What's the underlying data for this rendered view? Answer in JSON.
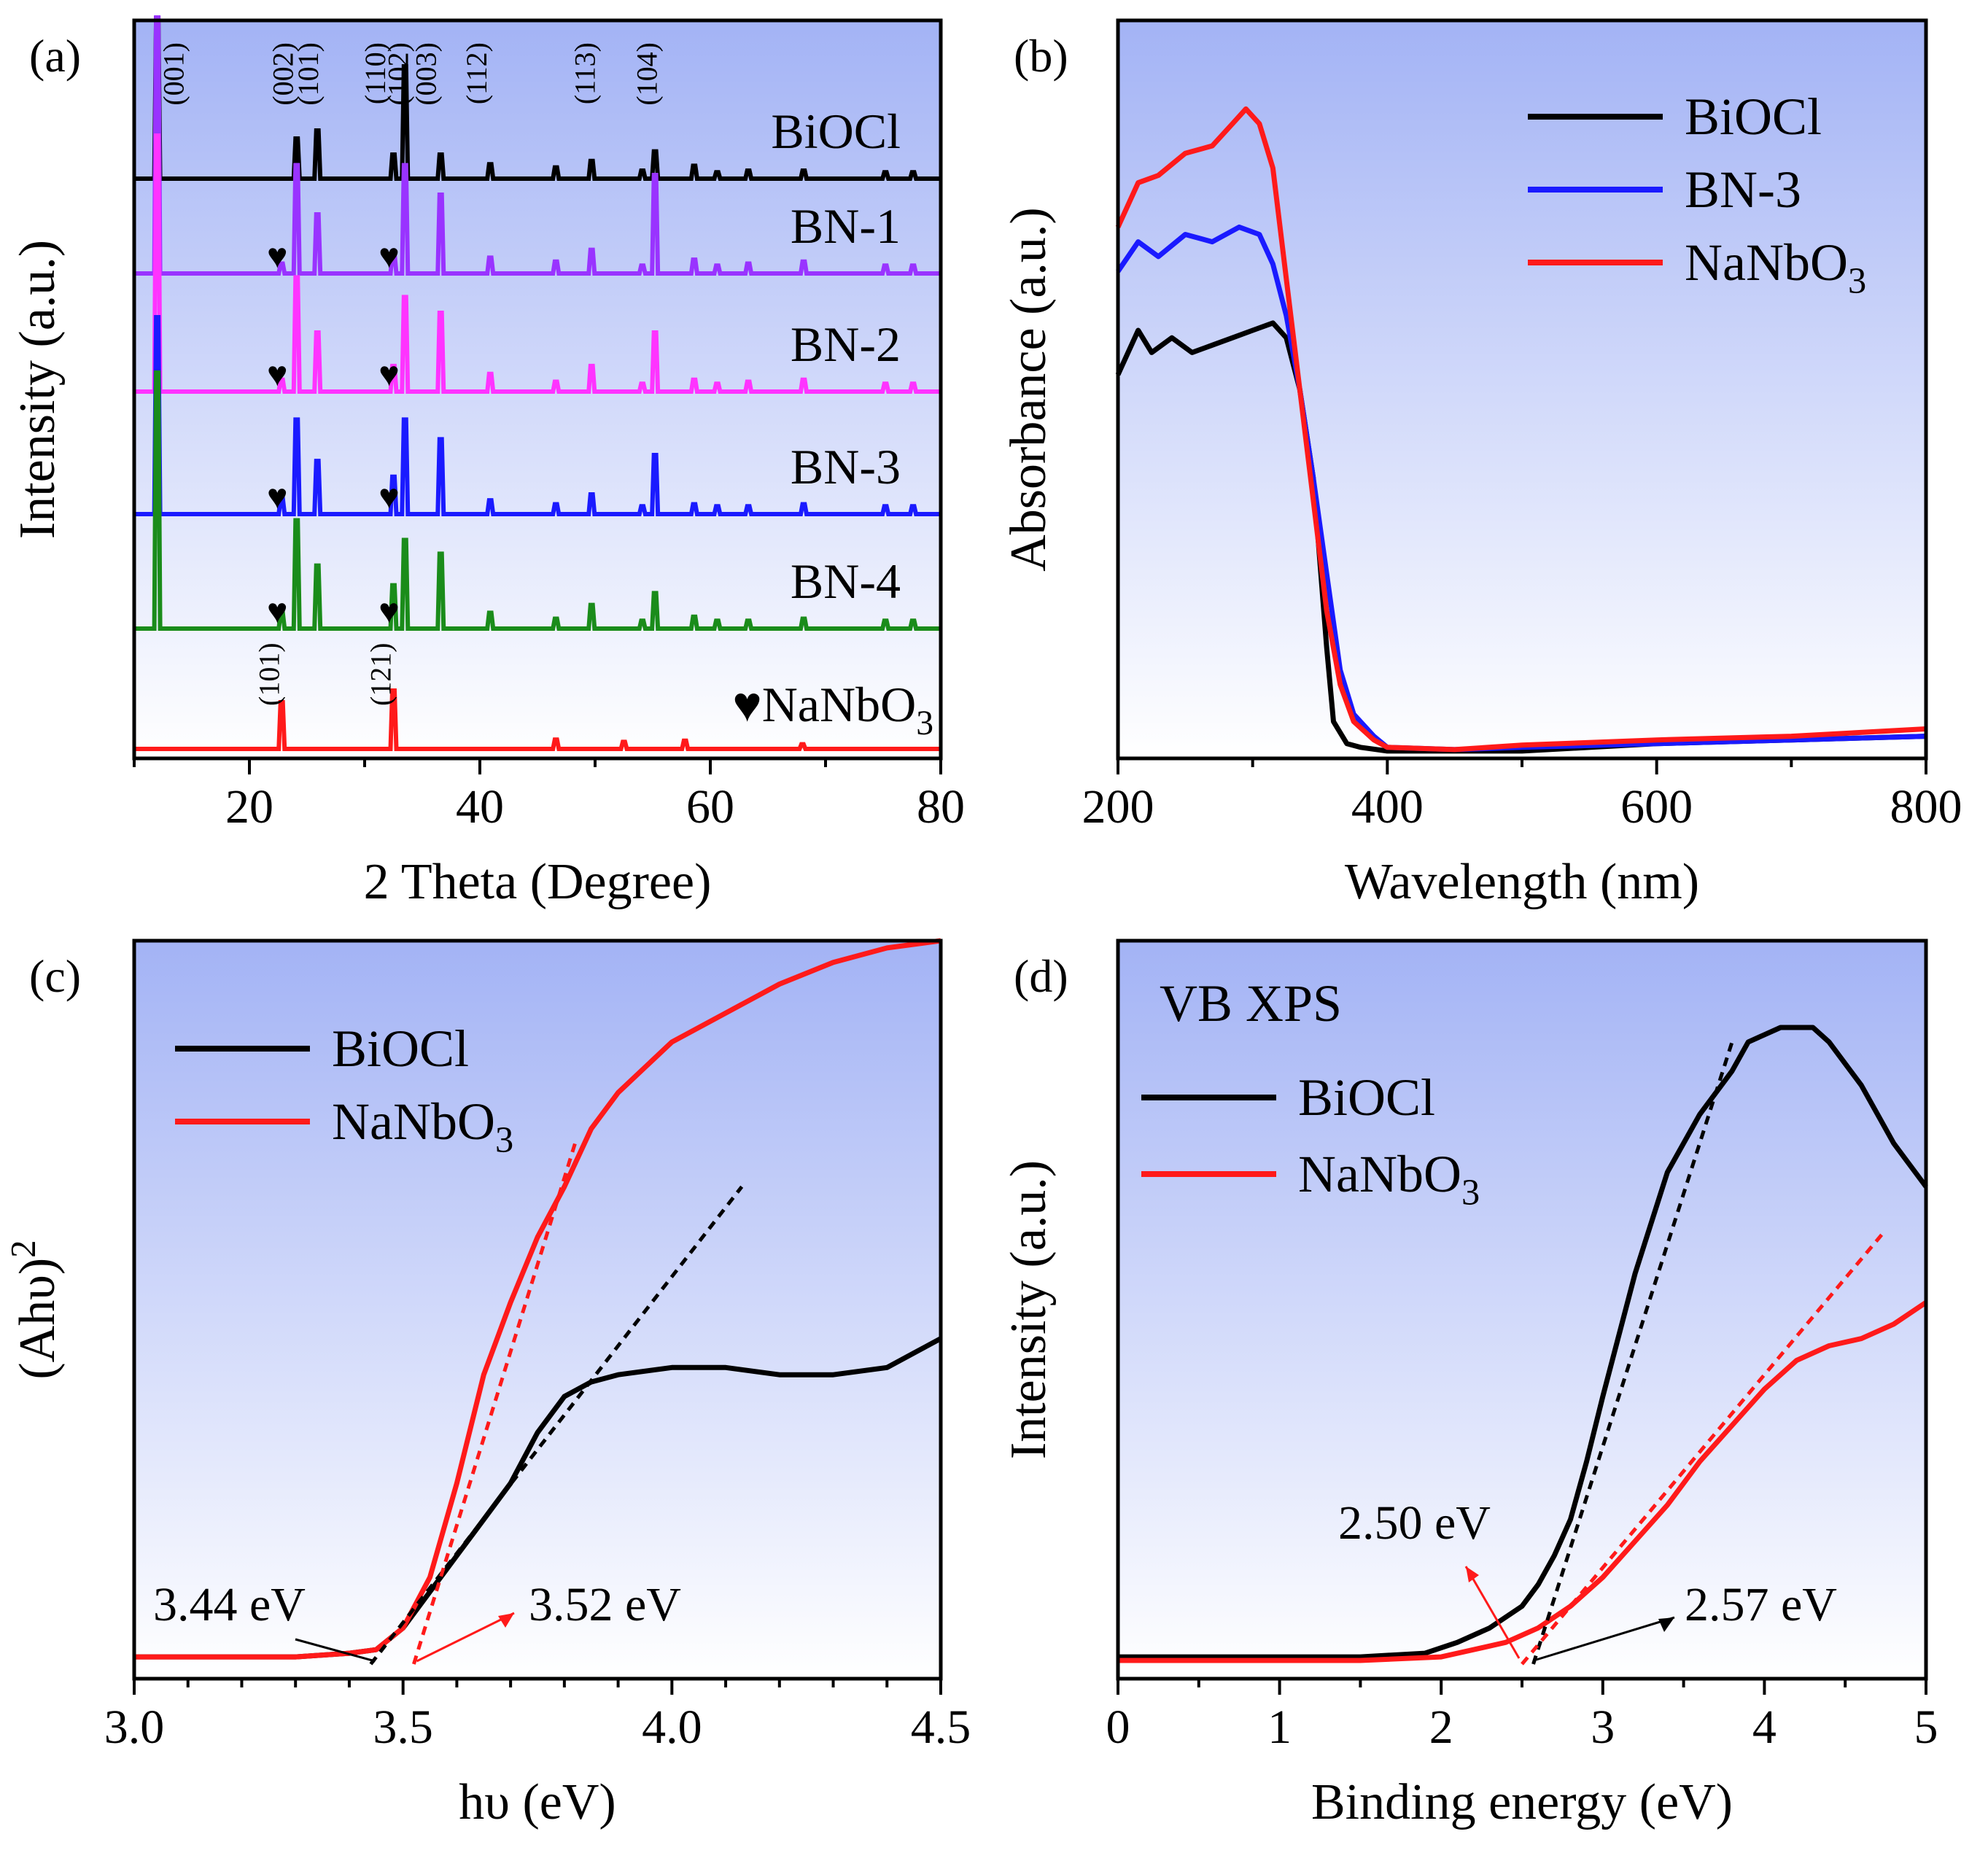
{
  "colors": {
    "black": "#000000",
    "blue": "#1a1aff",
    "red": "#ff1a1a",
    "purple": "#9933ff",
    "magenta": "#ff33ff",
    "green": "#1a8c1a",
    "bg_top": "#a3b3f5",
    "bg_bottom": "#ffffff"
  },
  "chart_data": [
    {
      "id": "a",
      "panel_label": "(a)",
      "type": "line",
      "xlabel": "2 Theta (Degree)",
      "ylabel": "Intensity (a.u.)",
      "xlim": [
        10,
        80
      ],
      "xticks": [
        20,
        40,
        60,
        80
      ],
      "series": [
        {
          "name": "BiOCl",
          "color": "#000000",
          "peaks": [
            [
              12.0,
              1.0
            ],
            [
              24.1,
              0.25
            ],
            [
              25.9,
              0.3
            ],
            [
              32.5,
              0.15
            ],
            [
              33.5,
              0.7
            ],
            [
              36.6,
              0.15
            ],
            [
              40.9,
              0.09
            ],
            [
              46.6,
              0.07
            ],
            [
              49.7,
              0.11
            ],
            [
              54.1,
              0.05
            ],
            [
              55.2,
              0.17
            ],
            [
              58.6,
              0.08
            ],
            [
              60.6,
              0.04
            ],
            [
              63.3,
              0.05
            ],
            [
              68.1,
              0.05
            ],
            [
              75.2,
              0.04
            ],
            [
              77.6,
              0.04
            ]
          ]
        },
        {
          "name": "BN-1",
          "color": "#9933ff",
          "peaks": [
            [
              12.0,
              1.3
            ],
            [
              22.8,
              0.05
            ],
            [
              24.1,
              0.55
            ],
            [
              25.9,
              0.3
            ],
            [
              32.5,
              0.1
            ],
            [
              33.5,
              0.55
            ],
            [
              36.6,
              0.4
            ],
            [
              40.9,
              0.08
            ],
            [
              46.6,
              0.06
            ],
            [
              49.7,
              0.12
            ],
            [
              54.1,
              0.04
            ],
            [
              55.2,
              0.5
            ],
            [
              58.6,
              0.07
            ],
            [
              60.6,
              0.04
            ],
            [
              63.3,
              0.05
            ],
            [
              68.1,
              0.06
            ],
            [
              75.2,
              0.04
            ],
            [
              77.6,
              0.04
            ]
          ]
        },
        {
          "name": "BN-2",
          "color": "#ff33ff",
          "peaks": [
            [
              12.0,
              1.3
            ],
            [
              22.8,
              0.06
            ],
            [
              24.1,
              0.58
            ],
            [
              25.9,
              0.3
            ],
            [
              32.5,
              0.13
            ],
            [
              33.5,
              0.48
            ],
            [
              36.6,
              0.4
            ],
            [
              40.9,
              0.09
            ],
            [
              46.6,
              0.05
            ],
            [
              49.7,
              0.13
            ],
            [
              54.1,
              0.04
            ],
            [
              55.2,
              0.3
            ],
            [
              58.6,
              0.06
            ],
            [
              60.6,
              0.04
            ],
            [
              63.3,
              0.05
            ],
            [
              68.1,
              0.06
            ],
            [
              75.2,
              0.04
            ],
            [
              77.6,
              0.04
            ]
          ]
        },
        {
          "name": "BN-3",
          "color": "#1a1aff",
          "peaks": [
            [
              12.0,
              1.0
            ],
            [
              22.8,
              0.08
            ],
            [
              24.1,
              0.48
            ],
            [
              25.9,
              0.27
            ],
            [
              32.5,
              0.19
            ],
            [
              33.5,
              0.48
            ],
            [
              36.6,
              0.38
            ],
            [
              40.9,
              0.07
            ],
            [
              46.6,
              0.05
            ],
            [
              49.7,
              0.1
            ],
            [
              54.1,
              0.04
            ],
            [
              55.2,
              0.3
            ],
            [
              58.6,
              0.05
            ],
            [
              60.6,
              0.04
            ],
            [
              63.3,
              0.04
            ],
            [
              68.1,
              0.05
            ],
            [
              75.2,
              0.04
            ],
            [
              77.6,
              0.04
            ]
          ]
        },
        {
          "name": "BN-4",
          "color": "#1a8c1a",
          "peaks": [
            [
              12.0,
              1.3
            ],
            [
              22.8,
              0.08
            ],
            [
              24.1,
              0.55
            ],
            [
              25.9,
              0.32
            ],
            [
              32.5,
              0.22
            ],
            [
              33.5,
              0.45
            ],
            [
              36.6,
              0.38
            ],
            [
              40.9,
              0.08
            ],
            [
              46.6,
              0.05
            ],
            [
              49.7,
              0.12
            ],
            [
              54.1,
              0.04
            ],
            [
              55.2,
              0.18
            ],
            [
              58.6,
              0.06
            ],
            [
              60.6,
              0.04
            ],
            [
              63.3,
              0.04
            ],
            [
              68.1,
              0.05
            ],
            [
              75.2,
              0.04
            ],
            [
              77.6,
              0.04
            ]
          ]
        },
        {
          "name": "NaNbO3",
          "color": "#ff1a1a",
          "peaks": [
            [
              22.8,
              0.4
            ],
            [
              32.5,
              0.5
            ],
            [
              46.6,
              0.08
            ],
            [
              52.5,
              0.06
            ],
            [
              57.8,
              0.07
            ],
            [
              68.0,
              0.04
            ]
          ]
        }
      ],
      "hkl_labels": [
        {
          "text": "(001)",
          "x": 13.5
        },
        {
          "text": "(002)",
          "x": 23.0
        },
        {
          "text": "(101)",
          "x": 25.2
        },
        {
          "text": "(110)",
          "x": 31.0
        },
        {
          "text": "(102)",
          "x": 33.0
        },
        {
          "text": "(003)",
          "x": 35.4
        },
        {
          "text": "(112)",
          "x": 39.8
        },
        {
          "text": "(113)",
          "x": 49.2
        },
        {
          "text": "(104)",
          "x": 54.6
        }
      ],
      "nanbo3_hkl": [
        {
          "text": "(101)",
          "x": 21.8
        },
        {
          "text": "(121)",
          "x": 31.5
        }
      ],
      "heart_symbol": "♥",
      "heart_positions": [
        22.8,
        32.5
      ],
      "legend_marker": "♥NaNbO",
      "legend_subscript": "3"
    },
    {
      "id": "b",
      "panel_label": "(b)",
      "type": "line",
      "xlabel": "Wavelength (nm)",
      "ylabel": "Absorbance (a.u.)",
      "xlim": [
        200,
        800
      ],
      "ylim": [
        0,
        1.0
      ],
      "xticks": [
        200,
        400,
        600,
        800
      ],
      "legend": [
        "BiOCl",
        "BN-3",
        "NaNbO3"
      ],
      "series": [
        {
          "name": "BiOCl",
          "color": "#000000",
          "x": [
            200,
            215,
            225,
            240,
            255,
            270,
            285,
            300,
            315,
            325,
            335,
            345,
            355,
            360,
            370,
            380,
            400,
            450,
            500,
            600,
            700,
            800
          ],
          "y": [
            0.52,
            0.58,
            0.55,
            0.57,
            0.55,
            0.56,
            0.57,
            0.58,
            0.59,
            0.57,
            0.5,
            0.38,
            0.15,
            0.05,
            0.02,
            0.015,
            0.01,
            0.01,
            0.01,
            0.02,
            0.025,
            0.03
          ]
        },
        {
          "name": "BN-3",
          "color": "#1a1aff",
          "x": [
            200,
            215,
            230,
            250,
            270,
            290,
            305,
            315,
            325,
            335,
            345,
            355,
            365,
            375,
            390,
            400,
            450,
            500,
            600,
            700,
            800
          ],
          "y": [
            0.66,
            0.7,
            0.68,
            0.71,
            0.7,
            0.72,
            0.71,
            0.67,
            0.6,
            0.5,
            0.38,
            0.25,
            0.12,
            0.06,
            0.03,
            0.015,
            0.012,
            0.015,
            0.02,
            0.025,
            0.03
          ]
        },
        {
          "name": "NaNbO3",
          "color": "#ff1a1a",
          "x": [
            200,
            215,
            230,
            250,
            270,
            285,
            295,
            305,
            315,
            325,
            335,
            345,
            355,
            365,
            375,
            390,
            400,
            450,
            500,
            600,
            700,
            800
          ],
          "y": [
            0.72,
            0.78,
            0.79,
            0.82,
            0.83,
            0.86,
            0.88,
            0.86,
            0.8,
            0.65,
            0.5,
            0.35,
            0.2,
            0.1,
            0.05,
            0.025,
            0.015,
            0.012,
            0.018,
            0.025,
            0.03,
            0.04
          ]
        }
      ]
    },
    {
      "id": "c",
      "panel_label": "(c)",
      "type": "line",
      "xlabel": "hυ (eV)",
      "ylabel": "(Ahυ)",
      "ylabel_superscript": "2",
      "xlim": [
        3.0,
        4.5
      ],
      "ylim": [
        0,
        1.0
      ],
      "xticks": [
        3.0,
        3.5,
        4.0,
        4.5
      ],
      "tick_labels": [
        "3.0",
        "3.5",
        "4.0",
        "4.5"
      ],
      "legend": [
        "BiOCl",
        "NaNbO3"
      ],
      "series": [
        {
          "name": "BiOCl",
          "color": "#000000",
          "x": [
            3.0,
            3.3,
            3.4,
            3.45,
            3.5,
            3.55,
            3.6,
            3.65,
            3.7,
            3.75,
            3.8,
            3.85,
            3.9,
            4.0,
            4.1,
            4.2,
            4.3,
            4.4,
            4.45,
            4.5
          ],
          "y": [
            0.01,
            0.01,
            0.015,
            0.02,
            0.05,
            0.1,
            0.15,
            0.2,
            0.25,
            0.32,
            0.37,
            0.39,
            0.4,
            0.41,
            0.41,
            0.4,
            0.4,
            0.41,
            0.43,
            0.45
          ]
        },
        {
          "name": "NaNbO3",
          "color": "#ff1a1a",
          "x": [
            3.0,
            3.3,
            3.4,
            3.45,
            3.5,
            3.55,
            3.6,
            3.65,
            3.7,
            3.75,
            3.8,
            3.85,
            3.9,
            4.0,
            4.1,
            4.2,
            4.3,
            4.4,
            4.5
          ],
          "y": [
            0.01,
            0.01,
            0.015,
            0.02,
            0.05,
            0.12,
            0.25,
            0.4,
            0.5,
            0.59,
            0.66,
            0.74,
            0.79,
            0.86,
            0.9,
            0.94,
            0.97,
            0.99,
            1.0
          ]
        }
      ],
      "tangents": [
        {
          "color": "#000000",
          "x": [
            3.44,
            4.13
          ],
          "y": [
            0.0,
            0.66
          ]
        },
        {
          "color": "#ff1a1a",
          "x": [
            3.52,
            3.82
          ],
          "y": [
            0.0,
            0.72
          ]
        }
      ],
      "annotations": [
        {
          "text": "3.44 eV",
          "x": 3.44
        },
        {
          "text": "3.52 eV",
          "x": 3.52
        }
      ]
    },
    {
      "id": "d",
      "panel_label": "(d)",
      "type": "line",
      "title": "VB XPS",
      "xlabel": "Binding energy (eV)",
      "ylabel": "Intensity (a.u.)",
      "xlim": [
        0,
        5
      ],
      "ylim": [
        0,
        1.0
      ],
      "xticks": [
        0,
        1,
        2,
        3,
        4,
        5
      ],
      "legend": [
        "BiOCl",
        "NaNbO3"
      ],
      "series": [
        {
          "name": "BiOCl",
          "color": "#000000",
          "x": [
            0,
            0.5,
            1.0,
            1.5,
            1.9,
            2.1,
            2.3,
            2.5,
            2.6,
            2.7,
            2.8,
            2.9,
            3.0,
            3.2,
            3.4,
            3.6,
            3.8,
            3.9,
            4.1,
            4.3,
            4.4,
            4.6,
            4.8,
            5.0
          ],
          "y": [
            0.01,
            0.01,
            0.01,
            0.01,
            0.015,
            0.03,
            0.05,
            0.08,
            0.11,
            0.15,
            0.2,
            0.28,
            0.37,
            0.54,
            0.68,
            0.76,
            0.82,
            0.86,
            0.88,
            0.88,
            0.86,
            0.8,
            0.72,
            0.66
          ]
        },
        {
          "name": "NaNbO3",
          "color": "#ff1a1a",
          "x": [
            0,
            0.5,
            1.0,
            1.5,
            2.0,
            2.2,
            2.4,
            2.6,
            2.8,
            3.0,
            3.2,
            3.4,
            3.6,
            3.8,
            4.0,
            4.2,
            4.4,
            4.6,
            4.8,
            5.0
          ],
          "y": [
            0.005,
            0.005,
            0.005,
            0.005,
            0.01,
            0.02,
            0.03,
            0.05,
            0.08,
            0.12,
            0.17,
            0.22,
            0.28,
            0.33,
            0.38,
            0.42,
            0.44,
            0.45,
            0.47,
            0.5
          ]
        }
      ],
      "tangents": [
        {
          "color": "#000000",
          "x": [
            2.57,
            3.8
          ],
          "y": [
            0.0,
            0.86
          ]
        },
        {
          "color": "#ff1a1a",
          "x": [
            2.5,
            4.75
          ],
          "y": [
            0.0,
            0.6
          ]
        }
      ],
      "annotations": [
        {
          "text": "2.50 eV",
          "x": 2.5
        },
        {
          "text": "2.57 eV",
          "x": 2.57
        }
      ]
    }
  ]
}
